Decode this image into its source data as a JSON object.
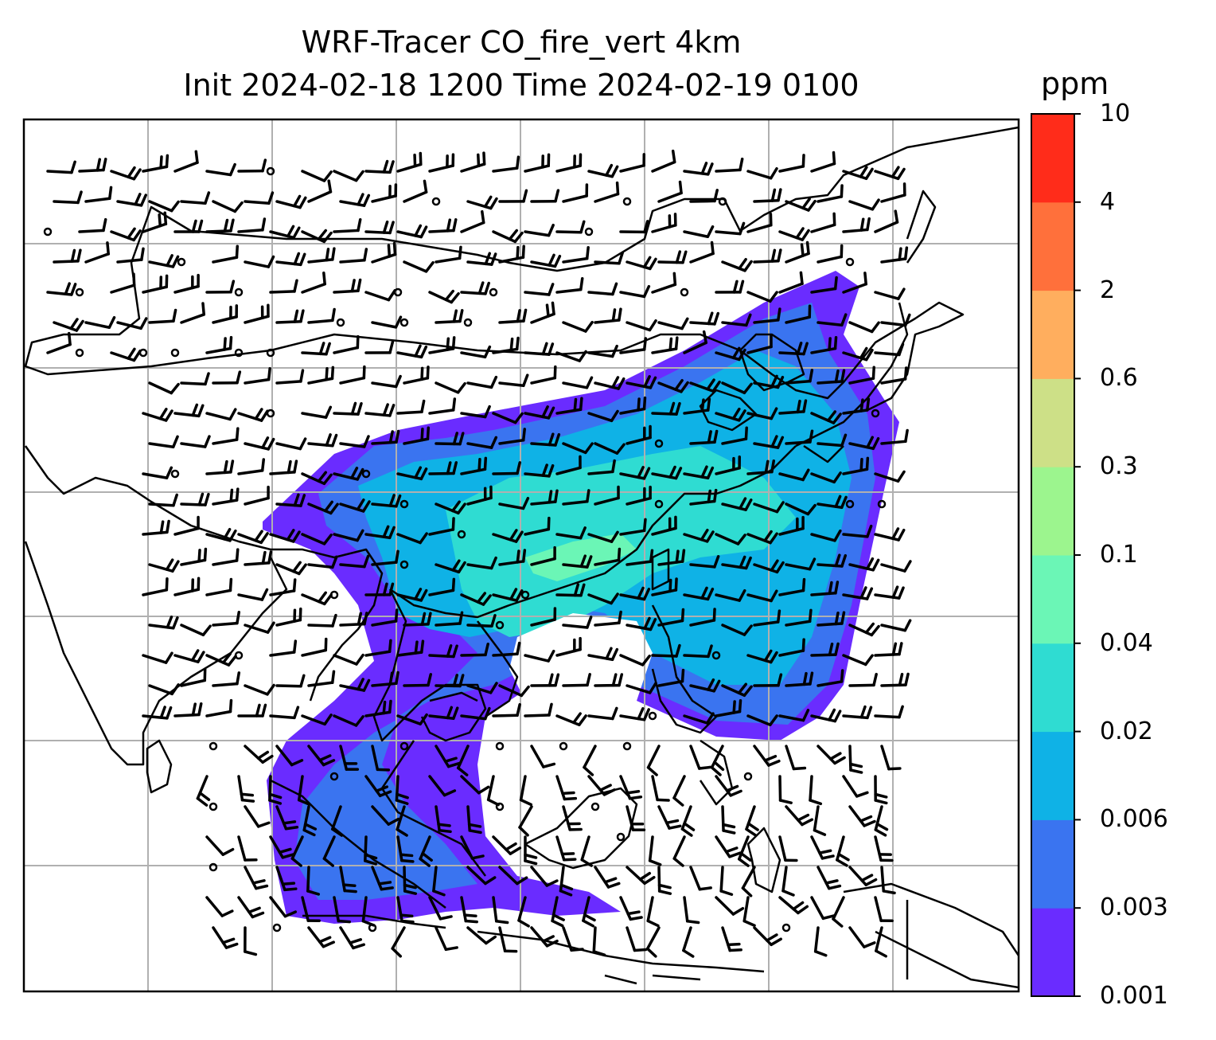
{
  "title": {
    "line1": "WRF-Tracer CO_fire_vert 4km",
    "line2": "Init 2024-02-18 1200 Time 2024-02-19 0100"
  },
  "colorbar": {
    "unit": "ppm",
    "ticks": [
      "0.001",
      "0.003",
      "0.006",
      "0.02",
      "0.04",
      "0.1",
      "0.3",
      "0.6",
      "2",
      "4",
      "10"
    ],
    "colors": [
      "#6a2cff",
      "#3a74f0",
      "#0fb2e6",
      "#2fdcd2",
      "#6bf6b6",
      "#9cf58e",
      "#cde087",
      "#ffae5e",
      "#ff703b",
      "#ff2c1a"
    ]
  },
  "map": {
    "gridlines": true,
    "field": "CO_fire_vert",
    "wind_barbs": true
  }
}
